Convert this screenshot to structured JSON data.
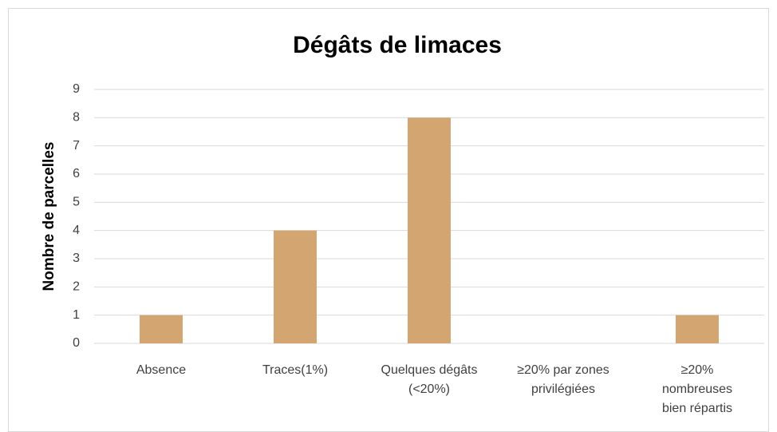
{
  "chart_data": {
    "type": "bar",
    "title": "Dégâts de limaces",
    "y_label": "Nombre de parcelles",
    "categories": [
      "Absence",
      "Traces(1%)",
      "Quelques dégâts\n(<20%)",
      "≥20% par zones\nprivilégiées",
      "≥20%\nnombreuses\nbien répartis"
    ],
    "values": [
      1,
      4,
      8,
      0,
      1
    ],
    "color": "#d2a571",
    "ylim": [
      0,
      9
    ],
    "yticks": [
      0,
      1,
      2,
      3,
      4,
      5,
      6,
      7,
      8,
      9
    ],
    "grid": true
  }
}
